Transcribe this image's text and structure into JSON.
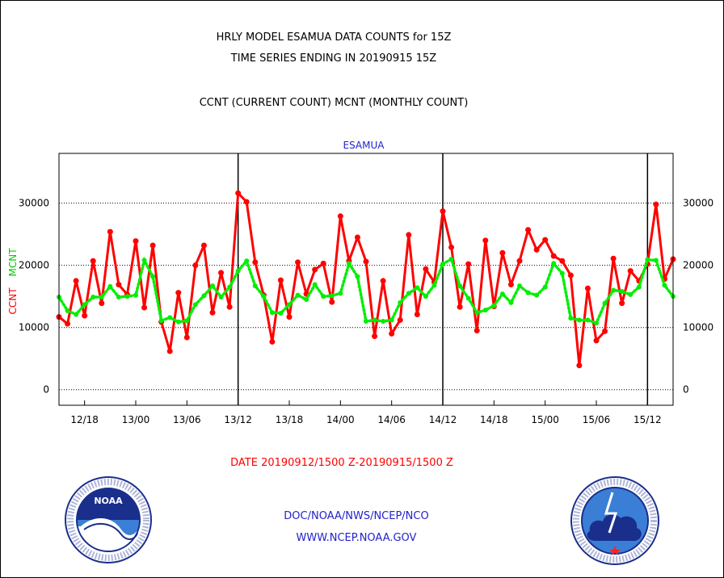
{
  "title_line1": "HRLY MODEL ESAMUA DATA COUNTS for 15Z",
  "title_line2": "TIME SERIES ENDING IN 20190915 15Z",
  "subtitle": "CCNT (CURRENT COUNT) MCNT (MONTHLY COUNT)",
  "date_range": "DATE 20190912/1500 Z-20190915/1500 Z",
  "credit_line1": "DOC/NOAA/NWS/NCEP/NCO",
  "credit_line2": "WWW.NCEP.NOAA.GOV",
  "logos": {
    "left": "noaa-logo",
    "right": "national-weather-service-logo"
  },
  "colors": {
    "ccnt": "#ff0000",
    "mcnt": "#00ee00",
    "panel_label": "#2222cc"
  },
  "chart_data": {
    "type": "line",
    "title": "ESAMUA",
    "ylabel_left_1": "CCNT",
    "ylabel_left_2": "MCNT",
    "ylim": [
      -2500,
      38000
    ],
    "yticks": [
      0,
      10000,
      20000,
      30000
    ],
    "ytick_labels": [
      "0",
      "10000",
      "20000",
      "30000"
    ],
    "xlim": [
      0,
      72
    ],
    "x_start": "12/15 15Z",
    "xtick_positions": [
      3,
      9,
      15,
      21,
      27,
      33,
      39,
      45,
      51,
      57,
      63,
      69
    ],
    "xtick_labels": [
      "12/18",
      "13/00",
      "13/06",
      "13/12",
      "13/18",
      "14/00",
      "14/06",
      "14/12",
      "14/18",
      "15/00",
      "15/06",
      "15/12"
    ],
    "vertical_lines": [
      21,
      45,
      69
    ],
    "grid_y": true,
    "series": [
      {
        "name": "CCNT",
        "values": [
          11700,
          10600,
          17500,
          11900,
          20700,
          13900,
          25400,
          16900,
          15300,
          23900,
          13200,
          23200,
          10900,
          6200,
          15600,
          8400,
          20000,
          23200,
          12400,
          18800,
          13300,
          31600,
          30200,
          20500,
          15200,
          7700,
          17600,
          11700,
          20500,
          15400,
          19300,
          20300,
          14100,
          27900,
          20700,
          24500,
          20600,
          8600,
          17500,
          9000,
          11200,
          24900,
          12100,
          19400,
          17300,
          28700,
          22900,
          13300,
          20200,
          9500,
          24000,
          13400,
          22000,
          16900,
          20700,
          25700,
          22500,
          24100,
          21500,
          20700,
          18400,
          3900,
          16300,
          7900,
          9400,
          21100,
          13900,
          19100,
          17500,
          20200,
          29800,
          17800,
          21000
        ]
      },
      {
        "name": "MCNT",
        "values": [
          14900,
          12700,
          12100,
          13700,
          14900,
          14900,
          16600,
          14900,
          15000,
          15200,
          20800,
          18200,
          11100,
          11600,
          10900,
          11100,
          13700,
          15100,
          16700,
          14900,
          16500,
          19100,
          20700,
          16700,
          15000,
          12400,
          12300,
          13700,
          15200,
          14500,
          16900,
          15000,
          15100,
          15500,
          20300,
          18200,
          11000,
          11200,
          11000,
          11200,
          14000,
          15500,
          16400,
          15000,
          16800,
          20200,
          21000,
          16700,
          14700,
          12400,
          12800,
          13500,
          15400,
          14000,
          16700,
          15600,
          15200,
          16500,
          20300,
          18700,
          11500,
          11200,
          11200,
          10700,
          13900,
          16000,
          15800,
          15300,
          16500,
          20900,
          20800,
          16800,
          15000
        ]
      }
    ]
  }
}
